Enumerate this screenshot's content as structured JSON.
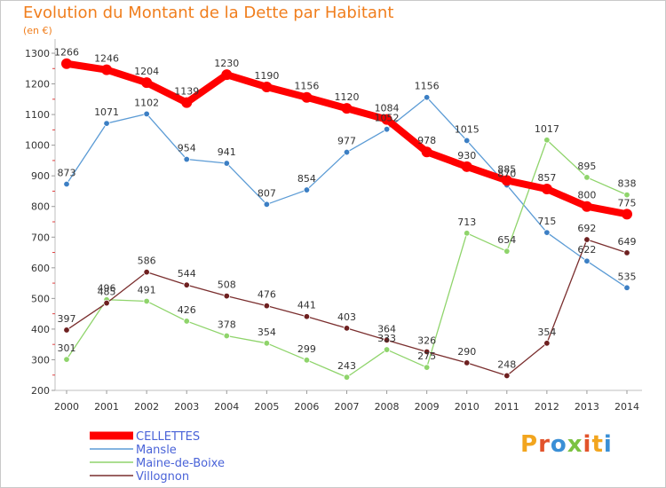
{
  "page": {
    "title": "Evolution du Montant de la Dette par Habitant",
    "subtitle": "(en €)",
    "logo_letters": [
      {
        "ch": "P",
        "color": "#f2a51e"
      },
      {
        "ch": "r",
        "color": "#e2532b"
      },
      {
        "ch": "o",
        "color": "#3a8fd6"
      },
      {
        "ch": "x",
        "color": "#7cc242"
      },
      {
        "ch": "i",
        "color": "#e2532b"
      },
      {
        "ch": "t",
        "color": "#f2a51e"
      },
      {
        "ch": "i",
        "color": "#3a8fd6"
      }
    ]
  },
  "chart_data": {
    "type": "line",
    "title": "Evolution du Montant de la Dette par Habitant",
    "subtitle": "(en €)",
    "x": [
      2000,
      2001,
      2002,
      2003,
      2004,
      2005,
      2006,
      2007,
      2008,
      2009,
      2010,
      2011,
      2012,
      2013,
      2014
    ],
    "ylim": [
      200,
      1300
    ],
    "yticks": [
      200,
      300,
      400,
      500,
      600,
      700,
      800,
      900,
      1000,
      1100,
      1200,
      1300
    ],
    "grid": false,
    "legend_position": "bottom-left",
    "series": [
      {
        "name": "CELLETTES",
        "color": "#ff0000",
        "values": [
          1266,
          1246,
          1204,
          1139,
          1230,
          1190,
          1156,
          1120,
          1084,
          978,
          930,
          885,
          857,
          800,
          775
        ]
      },
      {
        "name": "Mansle",
        "color": "#5b9bd5",
        "values": [
          873,
          1071,
          1102,
          954,
          941,
          807,
          854,
          977,
          1052,
          1156,
          1015,
          870,
          715,
          622,
          535
        ]
      },
      {
        "name": "Maine-de-Boixe",
        "color": "#8fd46b",
        "values": [
          301,
          496,
          491,
          426,
          378,
          354,
          299,
          243,
          333,
          275,
          713,
          654,
          1017,
          895,
          838
        ]
      },
      {
        "name": "Villognon",
        "color": "#7a2e2e",
        "values": [
          397,
          485,
          586,
          544,
          508,
          476,
          441,
          403,
          364,
          326,
          290,
          248,
          354,
          692,
          649
        ]
      }
    ]
  }
}
